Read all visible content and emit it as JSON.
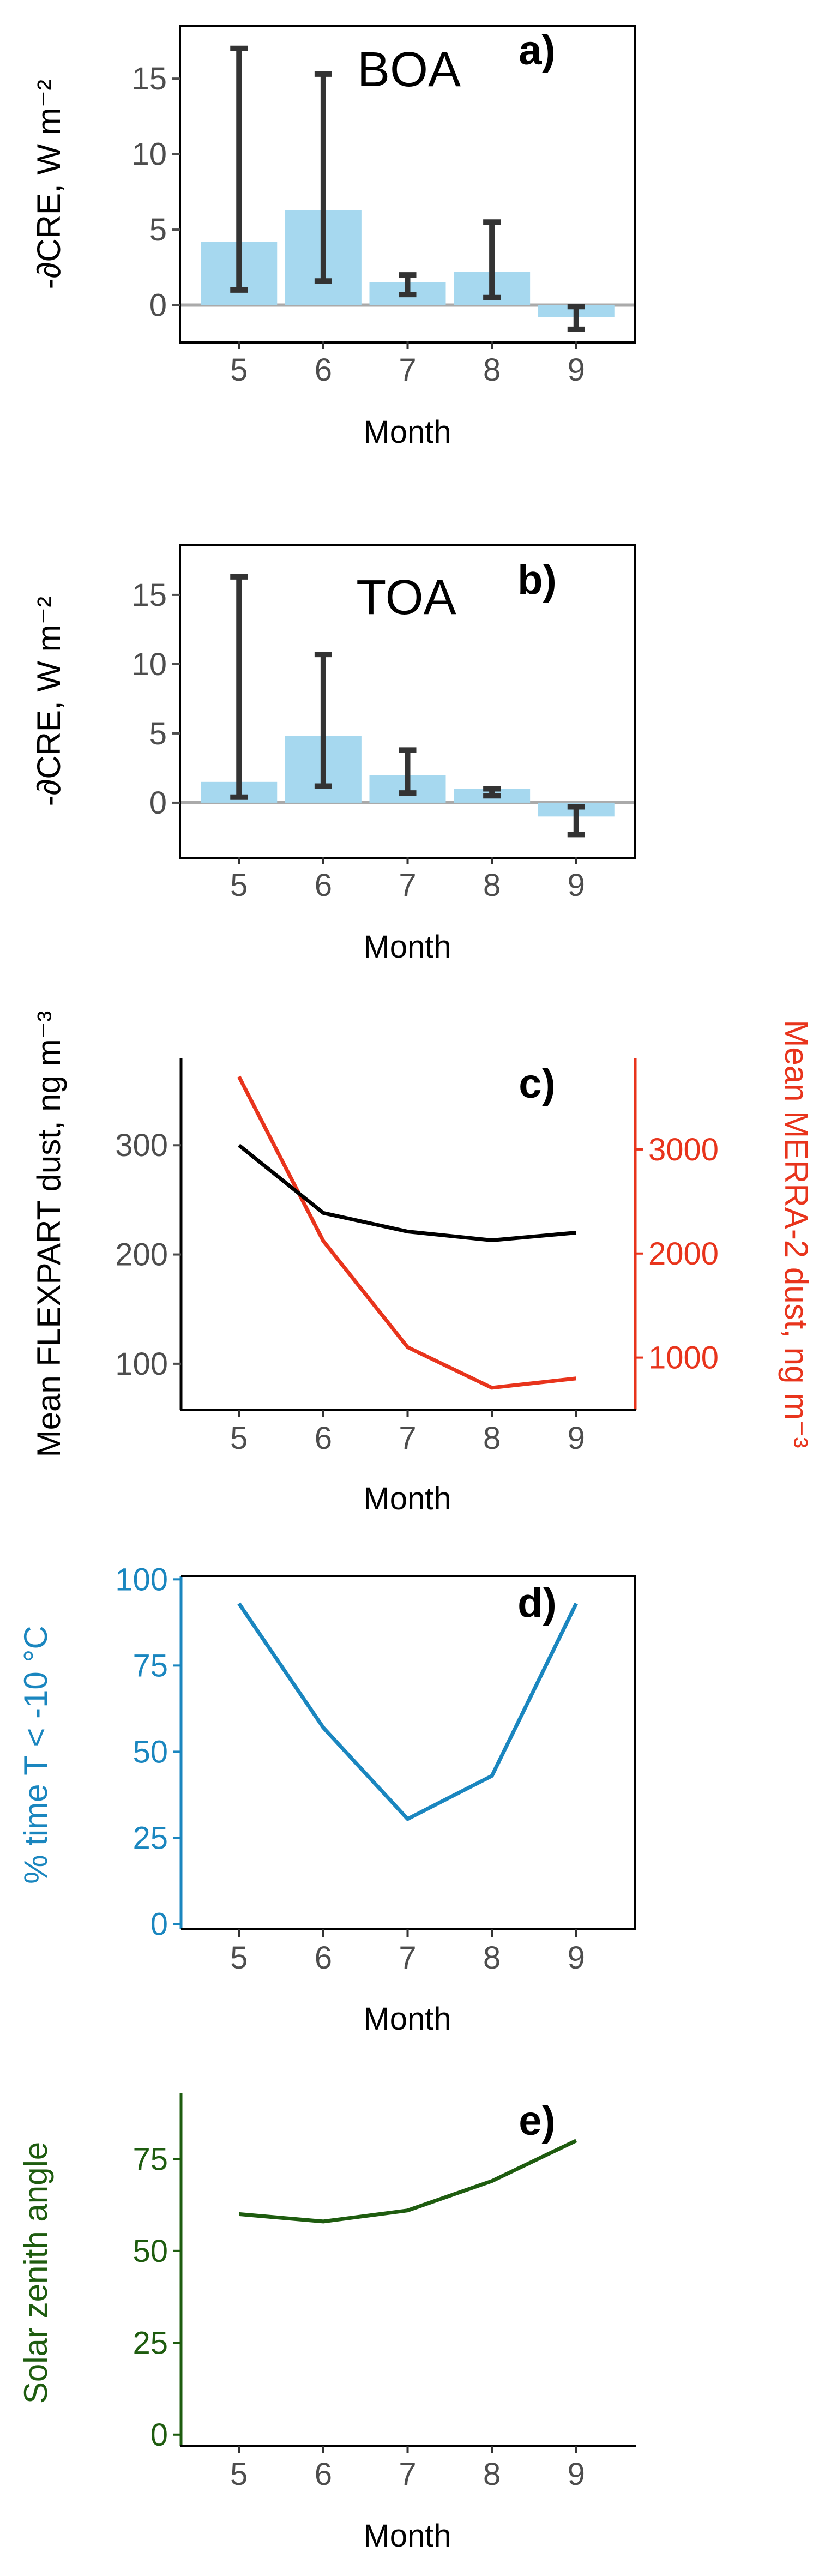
{
  "colors": {
    "bar": "#a6d8ef",
    "errbar": "#333333",
    "zero": "#aaaaaa",
    "flexpart": "#000000",
    "merra": "#e8341c",
    "temp": "#1a86bf",
    "sza": "#1e5c0f"
  },
  "chart_data": [
    {
      "id": "a",
      "type": "bar",
      "panel_label": "a)",
      "inset_label": "BOA",
      "xlabel": "Month",
      "ylabel": "-∂CRE, W m⁻²",
      "categories": [
        "5",
        "6",
        "7",
        "8",
        "9"
      ],
      "values": [
        4.2,
        6.3,
        1.5,
        2.2,
        -0.8
      ],
      "error_low": [
        1.0,
        1.6,
        0.7,
        0.5,
        -1.6
      ],
      "error_high": [
        17.0,
        15.3,
        2.0,
        5.5,
        -0.1
      ],
      "yticks": [
        "0",
        "5",
        "10",
        "15"
      ],
      "ylim": [
        -2.4,
        18.4
      ]
    },
    {
      "id": "b",
      "type": "bar",
      "panel_label": "b)",
      "inset_label": "TOA",
      "xlabel": "Month",
      "ylabel": "-∂CRE, W m⁻²",
      "categories": [
        "5",
        "6",
        "7",
        "8",
        "9"
      ],
      "values": [
        1.5,
        4.8,
        2.0,
        1.0,
        -1.0
      ],
      "error_low": [
        0.4,
        1.2,
        0.7,
        0.5,
        -2.3
      ],
      "error_high": [
        16.3,
        10.7,
        3.8,
        1.0,
        -0.3
      ],
      "yticks": [
        "0",
        "5",
        "10",
        "15"
      ],
      "ylim": [
        -3.9,
        18.5
      ]
    },
    {
      "id": "c",
      "type": "line",
      "panel_label": "c)",
      "xlabel": "Month",
      "x": [
        5,
        6,
        7,
        8,
        9
      ],
      "series": [
        {
          "name": "Mean FLEXPART dust, ng m⁻³",
          "axis": "left",
          "values": [
            300,
            238,
            221,
            213,
            220
          ]
        },
        {
          "name": "Mean MERRA-2 dust, ng m⁻³",
          "axis": "right",
          "values": [
            3700,
            2120,
            1100,
            710,
            800
          ]
        }
      ],
      "ylabel_left": "Mean FLEXPART dust, ng m⁻³",
      "ylabel_right": "Mean MERRA-2 dust, ng m⁻³",
      "yticks_left": [
        "100",
        "200",
        "300"
      ],
      "yticks_right": [
        "1000",
        "2000",
        "3000"
      ],
      "ylim_left": [
        58,
        380
      ],
      "ylim_right": [
        500,
        3880
      ]
    },
    {
      "id": "d",
      "type": "line",
      "panel_label": "d)",
      "xlabel": "Month",
      "ylabel": "% time T < -10 °C",
      "x": [
        5,
        6,
        7,
        8,
        9
      ],
      "values": [
        93,
        57,
        30.5,
        43,
        93
      ],
      "yticks": [
        "0",
        "25",
        "50",
        "75",
        "100"
      ],
      "ylim": [
        -1.5,
        101
      ]
    },
    {
      "id": "e",
      "type": "line",
      "panel_label": "e)",
      "xlabel": "Month",
      "ylabel": "Solar zenith angle",
      "x": [
        5,
        6,
        7,
        8,
        9
      ],
      "values": [
        60,
        58,
        61,
        69,
        80
      ],
      "yticks": [
        "0",
        "25",
        "50",
        "75"
      ],
      "ylim": [
        -3,
        93
      ]
    }
  ]
}
